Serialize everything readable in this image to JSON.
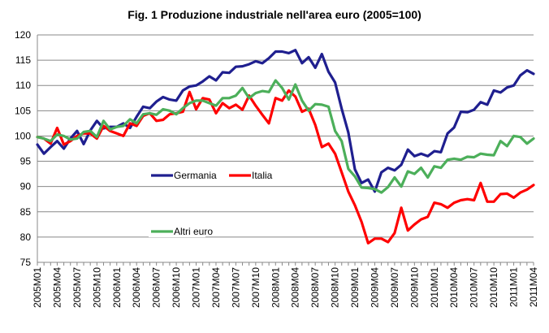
{
  "chart_data": {
    "type": "line",
    "title": "Fig. 1 Produzione industriale nell'area euro (2005=100)",
    "xlabel": "",
    "ylabel": "",
    "ylim": [
      75,
      120
    ],
    "yticks": [
      "75",
      "80",
      "85",
      "90",
      "95",
      "100",
      "105",
      "110",
      "115",
      "120"
    ],
    "xticks": [
      "2005M01",
      "2005M04",
      "2005M07",
      "2005M10",
      "2006M01",
      "2006M04",
      "2006M07",
      "2006M10",
      "2007M01",
      "2007M04",
      "2007M07",
      "2007M10",
      "2008M01",
      "2008M04",
      "2008M07",
      "2008M10",
      "2009M01",
      "2009M04",
      "2009M07",
      "2009M10",
      "2010M01",
      "2010M04",
      "2010M07",
      "2010M10",
      "2011M01",
      "2011M04"
    ],
    "grid": "horizontal",
    "legend_placement": "inside-left",
    "series": [
      {
        "name": "Germania",
        "color": "#1f1f8f",
        "values": [
          98.3,
          96.5,
          97.8,
          99.0,
          97.5,
          99.5,
          101.0,
          98.4,
          101.1,
          103.0,
          101.5,
          101.8,
          101.8,
          102.5,
          101.6,
          103.8,
          105.8,
          105.5,
          106.8,
          107.7,
          107.2,
          107.0,
          109.0,
          109.8,
          110.0,
          110.8,
          111.8,
          111.0,
          112.6,
          112.5,
          113.7,
          113.8,
          114.2,
          114.8,
          114.4,
          115.4,
          116.7,
          116.7,
          116.4,
          117.0,
          114.4,
          115.6,
          113.5,
          116.2,
          112.7,
          110.6,
          105.4,
          100.7,
          93.4,
          90.7,
          91.4,
          89.0,
          92.8,
          93.7,
          93.2,
          94.3,
          97.3,
          96.0,
          96.5,
          96.0,
          97.0,
          96.8,
          100.5,
          101.7,
          104.8,
          104.7,
          105.2,
          106.7,
          106.2,
          109.0,
          108.6,
          109.6,
          110.0,
          112.0,
          113.0,
          112.3
        ]
      },
      {
        "name": "Italia",
        "color": "#ff0000",
        "values": [
          99.8,
          99.5,
          98.5,
          101.6,
          98.3,
          99.0,
          100.0,
          100.5,
          100.5,
          99.5,
          102.0,
          101.0,
          100.5,
          100.0,
          102.5,
          102.0,
          104.0,
          104.5,
          103.0,
          103.2,
          104.3,
          104.5,
          104.8,
          108.7,
          105.3,
          107.5,
          107.2,
          104.5,
          106.5,
          105.5,
          106.2,
          105.2,
          108.0,
          106.0,
          104.2,
          102.5,
          107.5,
          107.0,
          109.0,
          107.8,
          104.8,
          105.4,
          102.2,
          97.8,
          98.5,
          96.5,
          92.8,
          89.0,
          86.3,
          83.0,
          78.8,
          79.7,
          79.7,
          79.0,
          80.8,
          85.8,
          81.3,
          82.5,
          83.5,
          84.0,
          86.8,
          86.5,
          85.8,
          86.8,
          87.3,
          87.5,
          87.3,
          90.7,
          87.0,
          87.0,
          88.5,
          88.6,
          87.8,
          88.8,
          89.4,
          90.3
        ]
      },
      {
        "name": "Altri euro",
        "color": "#4caf5a",
        "values": [
          99.8,
          99.5,
          99.0,
          100.3,
          100.0,
          99.3,
          99.5,
          100.8,
          101.0,
          99.8,
          103.0,
          101.3,
          101.8,
          102.0,
          103.3,
          102.5,
          104.3,
          104.5,
          104.2,
          105.3,
          105.0,
          104.3,
          105.5,
          106.5,
          107.0,
          107.0,
          106.5,
          106.0,
          107.5,
          107.5,
          108.0,
          109.5,
          107.5,
          108.5,
          108.9,
          108.7,
          111.0,
          109.5,
          107.2,
          110.2,
          107.0,
          105.0,
          106.3,
          106.2,
          105.8,
          101.0,
          99.0,
          93.5,
          92.0,
          89.8,
          89.7,
          89.5,
          88.8,
          89.9,
          91.8,
          90.0,
          93.0,
          92.5,
          93.7,
          91.8,
          94.0,
          93.7,
          95.3,
          95.5,
          95.3,
          95.9,
          95.8,
          96.5,
          96.3,
          96.2,
          99.0,
          98.0,
          100.0,
          99.8,
          98.5,
          99.5
        ]
      }
    ]
  }
}
